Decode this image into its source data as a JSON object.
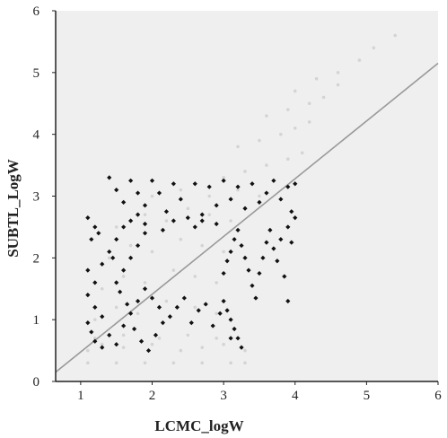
{
  "chart_data": {
    "type": "scatter",
    "title": "",
    "xlabel": "LCMC_logW",
    "ylabel": "SUBTL_LogW",
    "xlim": [
      0.65,
      6
    ],
    "ylim": [
      0,
      6
    ],
    "x_ticks": [
      "1",
      "2",
      "3",
      "4",
      "5",
      "6"
    ],
    "y_ticks": [
      "0",
      "1",
      "2",
      "3",
      "4",
      "5",
      "6"
    ],
    "grid": false,
    "legend": "none",
    "colors": {
      "background": "#efefef",
      "background_points": "#d4d4d4",
      "highlight_points": "#111111",
      "regression_line": "#999999"
    },
    "series": [
      {
        "marker": "dot",
        "description_visible": false,
        "points": [
          [
            1.1,
            0.5
          ],
          [
            1.3,
            0.6
          ],
          [
            1.6,
            0.55
          ],
          [
            2.0,
            0.6
          ],
          [
            2.4,
            0.5
          ],
          [
            2.7,
            0.55
          ],
          [
            3.0,
            0.6
          ],
          [
            3.3,
            0.5
          ],
          [
            1.1,
            0.3
          ],
          [
            1.5,
            0.3
          ],
          [
            1.9,
            0.3
          ],
          [
            2.3,
            0.3
          ],
          [
            2.7,
            0.3
          ],
          [
            3.1,
            0.3
          ],
          [
            3.3,
            0.3
          ],
          [
            1.2,
            0.7
          ],
          [
            1.6,
            0.75
          ],
          [
            2.1,
            0.7
          ],
          [
            2.5,
            0.75
          ],
          [
            2.9,
            0.7
          ],
          [
            1.2,
            1.0
          ],
          [
            1.5,
            1.2
          ],
          [
            1.8,
            1.1
          ],
          [
            2.2,
            1.3
          ],
          [
            2.6,
            1.2
          ],
          [
            2.9,
            1.1
          ],
          [
            1.3,
            1.5
          ],
          [
            1.6,
            1.7
          ],
          [
            1.9,
            1.6
          ],
          [
            2.3,
            1.8
          ],
          [
            2.6,
            1.7
          ],
          [
            2.9,
            1.6
          ],
          [
            1.4,
            2.0
          ],
          [
            1.7,
            2.2
          ],
          [
            2.0,
            2.1
          ],
          [
            2.4,
            2.3
          ],
          [
            2.7,
            2.2
          ],
          [
            3.0,
            2.1
          ],
          [
            1.5,
            2.5
          ],
          [
            1.9,
            2.7
          ],
          [
            2.2,
            2.6
          ],
          [
            2.5,
            2.8
          ],
          [
            2.8,
            2.7
          ],
          [
            3.1,
            2.6
          ],
          [
            2.0,
            3.0
          ],
          [
            2.4,
            3.1
          ],
          [
            2.8,
            3.0
          ],
          [
            3.2,
            3.1
          ],
          [
            3.5,
            3.0
          ],
          [
            3.0,
            3.3
          ],
          [
            3.3,
            3.4
          ],
          [
            3.6,
            3.5
          ],
          [
            3.9,
            3.6
          ],
          [
            4.1,
            3.7
          ],
          [
            3.2,
            3.8
          ],
          [
            3.5,
            3.9
          ],
          [
            3.8,
            4.0
          ],
          [
            4.0,
            4.1
          ],
          [
            4.2,
            4.2
          ],
          [
            3.6,
            4.3
          ],
          [
            3.9,
            4.4
          ],
          [
            4.2,
            4.5
          ],
          [
            4.4,
            4.6
          ],
          [
            4.6,
            4.8
          ],
          [
            4.0,
            4.7
          ],
          [
            4.3,
            4.9
          ],
          [
            4.6,
            5.0
          ],
          [
            4.9,
            5.2
          ],
          [
            5.1,
            5.4
          ],
          [
            5.4,
            5.6
          ]
        ]
      },
      {
        "marker": "diamond",
        "points": [
          [
            1.1,
            2.65
          ],
          [
            1.2,
            2.5
          ],
          [
            1.15,
            2.3
          ],
          [
            1.25,
            2.4
          ],
          [
            1.4,
            3.3
          ],
          [
            1.5,
            3.1
          ],
          [
            1.6,
            2.9
          ],
          [
            1.7,
            3.25
          ],
          [
            1.8,
            3.05
          ],
          [
            1.9,
            2.85
          ],
          [
            2.0,
            3.25
          ],
          [
            2.1,
            3.05
          ],
          [
            2.2,
            2.75
          ],
          [
            2.3,
            3.2
          ],
          [
            2.4,
            2.95
          ],
          [
            2.5,
            2.65
          ],
          [
            2.6,
            3.2
          ],
          [
            2.7,
            2.7
          ],
          [
            2.8,
            3.15
          ],
          [
            2.9,
            2.85
          ],
          [
            3.0,
            3.25
          ],
          [
            3.1,
            2.95
          ],
          [
            3.2,
            3.15
          ],
          [
            3.3,
            2.8
          ],
          [
            3.4,
            3.2
          ],
          [
            3.5,
            2.9
          ],
          [
            3.6,
            3.05
          ],
          [
            3.7,
            3.25
          ],
          [
            3.8,
            2.95
          ],
          [
            3.9,
            3.15
          ],
          [
            4.0,
            3.2
          ],
          [
            1.1,
            1.8
          ],
          [
            1.2,
            1.6
          ],
          [
            1.3,
            1.9
          ],
          [
            1.1,
            1.4
          ],
          [
            1.2,
            1.2
          ],
          [
            1.3,
            1.05
          ],
          [
            1.1,
            0.95
          ],
          [
            1.15,
            0.8
          ],
          [
            1.2,
            0.65
          ],
          [
            1.3,
            0.55
          ],
          [
            1.4,
            0.75
          ],
          [
            1.5,
            0.6
          ],
          [
            1.6,
            0.9
          ],
          [
            1.7,
            1.1
          ],
          [
            1.8,
            1.3
          ],
          [
            1.9,
            1.5
          ],
          [
            1.5,
            1.6
          ],
          [
            1.6,
            1.8
          ],
          [
            1.7,
            2.0
          ],
          [
            1.8,
            2.2
          ],
          [
            1.9,
            2.4
          ],
          [
            1.4,
            2.1
          ],
          [
            1.5,
            2.3
          ],
          [
            1.6,
            2.5
          ],
          [
            1.7,
            2.6
          ],
          [
            1.8,
            2.7
          ],
          [
            1.9,
            2.55
          ],
          [
            1.45,
            2.0
          ],
          [
            1.55,
            1.45
          ],
          [
            1.65,
            1.25
          ],
          [
            1.75,
            0.85
          ],
          [
            1.85,
            0.65
          ],
          [
            1.95,
            0.5
          ],
          [
            2.05,
            0.75
          ],
          [
            2.15,
            0.95
          ],
          [
            2.25,
            1.05
          ],
          [
            2.35,
            1.2
          ],
          [
            2.45,
            1.35
          ],
          [
            2.55,
            0.95
          ],
          [
            2.65,
            1.15
          ],
          [
            2.75,
            1.25
          ],
          [
            2.85,
            0.9
          ],
          [
            2.95,
            1.1
          ],
          [
            2.0,
            1.35
          ],
          [
            2.1,
            1.2
          ],
          [
            3.0,
            1.3
          ],
          [
            3.05,
            1.15
          ],
          [
            3.1,
            1.0
          ],
          [
            3.15,
            0.85
          ],
          [
            3.2,
            0.7
          ],
          [
            3.25,
            0.55
          ],
          [
            3.1,
            0.7
          ],
          [
            3.0,
            1.75
          ],
          [
            3.05,
            1.95
          ],
          [
            3.1,
            2.1
          ],
          [
            3.15,
            2.3
          ],
          [
            3.2,
            2.45
          ],
          [
            3.25,
            2.2
          ],
          [
            3.3,
            2.0
          ],
          [
            3.35,
            1.8
          ],
          [
            3.4,
            1.55
          ],
          [
            3.45,
            1.35
          ],
          [
            3.5,
            1.75
          ],
          [
            3.55,
            2.0
          ],
          [
            3.6,
            2.25
          ],
          [
            3.65,
            2.45
          ],
          [
            3.7,
            2.15
          ],
          [
            3.75,
            1.95
          ],
          [
            3.8,
            2.3
          ],
          [
            3.85,
            1.7
          ],
          [
            3.9,
            2.5
          ],
          [
            3.95,
            2.25
          ],
          [
            3.9,
            1.3
          ],
          [
            3.95,
            2.75
          ],
          [
            4.0,
            2.65
          ],
          [
            2.6,
            2.5
          ],
          [
            2.7,
            2.6
          ],
          [
            2.9,
            2.55
          ],
          [
            2.3,
            2.6
          ],
          [
            2.15,
            2.45
          ]
        ]
      }
    ],
    "regression_line": {
      "from": [
        0.65,
        0.15
      ],
      "to": [
        6,
        5.15
      ]
    }
  }
}
